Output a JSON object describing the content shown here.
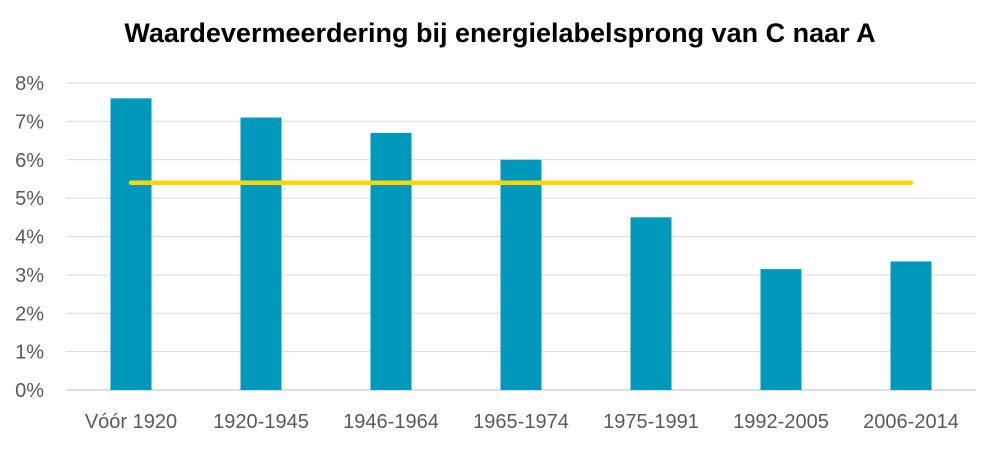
{
  "chart_data": {
    "type": "bar",
    "title": "Waardevermeerdering bij energielabelsprong van C naar A",
    "xlabel": "",
    "ylabel": "",
    "categories": [
      "Vóór 1920",
      "1920-1945",
      "1946-1964",
      "1965-1974",
      "1975-1991",
      "1992-2005",
      "2006-2014"
    ],
    "series": [
      {
        "type": "bar",
        "values": [
          7.6,
          7.1,
          6.7,
          6.0,
          4.5,
          3.15,
          3.35
        ],
        "color": "#0099BC"
      },
      {
        "type": "line",
        "values": [
          5.4,
          5.4,
          5.4,
          5.4,
          5.4,
          5.4,
          5.4
        ],
        "color": "#FFD700"
      }
    ],
    "ylim": [
      0,
      8
    ],
    "yticks": [
      "0%",
      "1%",
      "2%",
      "3%",
      "4%",
      "5%",
      "6%",
      "7%",
      "8%"
    ],
    "grid": true,
    "legend": "none"
  }
}
